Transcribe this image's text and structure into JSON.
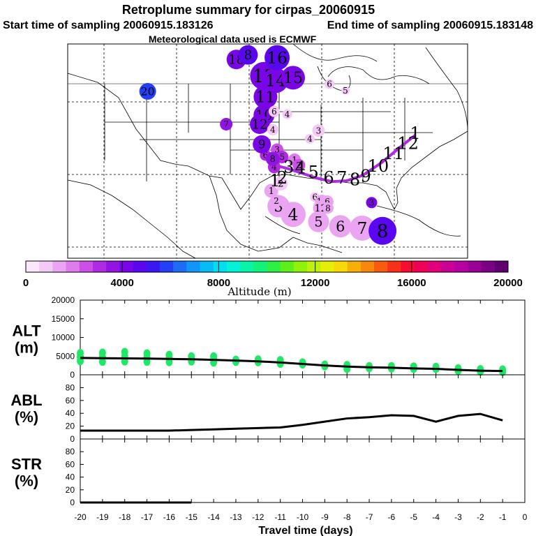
{
  "header": {
    "title": "Retroplume summary for cirpas_20060915",
    "subtitle_start": "Start time of sampling 20060915.183126",
    "subtitle_end": "End time of sampling 20060915.183148",
    "met_line": "Meteorological data used is ECMWF"
  },
  "colorbar": {
    "label": "Altitude (m)",
    "tick_labels": [
      "0",
      "4000",
      "8000",
      "12000",
      "16000",
      "20000"
    ],
    "colors": [
      "#fbe6fb",
      "#f4c9f6",
      "#eba4f1",
      "#dd7cec",
      "#cc4fe8",
      "#b02ae4",
      "#9214e4",
      "#7a06e8",
      "#5a06f0",
      "#3a18f4",
      "#2440f6",
      "#1c6cf8",
      "#1096f8",
      "#06bcf6",
      "#04dcf0",
      "#04f2d8",
      "#08f4a8",
      "#10f27a",
      "#2cf044",
      "#5cf018",
      "#90f20a",
      "#c0f208",
      "#e6ee06",
      "#f8d806",
      "#f8b008",
      "#f8880c",
      "#f85a10",
      "#f83018",
      "#f80c30",
      "#f00058",
      "#e0007c",
      "#cc0096",
      "#b600a0",
      "#9a0096",
      "#7c0084",
      "#600070"
    ]
  },
  "map": {
    "markers": [
      {
        "label": "1",
        "lon": -97.0,
        "lat": 28.9,
        "alt": 1200,
        "r": 10
      },
      {
        "label": "2",
        "lon": -95.7,
        "lat": 29.7,
        "alt": 1000,
        "r": 10
      },
      {
        "label": "3",
        "lon": -96.0,
        "lat": 27.2,
        "alt": 1400,
        "r": 16
      },
      {
        "label": "4",
        "lon": -94.0,
        "lat": 26.3,
        "alt": 1300,
        "r": 18
      },
      {
        "label": "5",
        "lon": -90.5,
        "lat": 25.5,
        "alt": 1500,
        "r": 15
      },
      {
        "label": "6",
        "lon": -87.5,
        "lat": 25.0,
        "alt": 1500,
        "r": 16
      },
      {
        "label": "7",
        "lon": -84.5,
        "lat": 24.8,
        "alt": 1400,
        "r": 18
      },
      {
        "label": "8",
        "lon": -81.7,
        "lat": 24.5,
        "alt": 4700,
        "r": 20
      },
      {
        "label": "1",
        "lon": -93.8,
        "lat": 32.3,
        "alt": 2000,
        "r": 9
      },
      {
        "label": "2",
        "lon": -93.2,
        "lat": 31.7,
        "alt": 2400,
        "r": 9
      },
      {
        "label": "3",
        "lon": -96.2,
        "lat": 33.4,
        "alt": 2700,
        "r": 9
      },
      {
        "label": "4",
        "lon": -96.6,
        "lat": 31.5,
        "alt": 2800,
        "r": 9
      },
      {
        "label": "5",
        "lon": -95.5,
        "lat": 32.6,
        "alt": 3100,
        "r": 9
      },
      {
        "label": "6",
        "lon": -97.8,
        "lat": 32.8,
        "alt": 3300,
        "r": 8
      },
      {
        "label": "7",
        "lon": -103.2,
        "lat": 36.2,
        "alt": 3400,
        "r": 9
      },
      {
        "label": "8",
        "lon": -96.8,
        "lat": 32.4,
        "alt": 3600,
        "r": 10
      },
      {
        "label": "9",
        "lon": -98.3,
        "lat": 34.0,
        "alt": 3900,
        "r": 13
      },
      {
        "label": "10",
        "lon": -98.0,
        "lat": 37.2,
        "alt": 3900,
        "r": 15
      },
      {
        "label": "11",
        "lon": -97.8,
        "lat": 39.2,
        "alt": 4100,
        "r": 17
      },
      {
        "label": "12",
        "lon": -98.6,
        "lat": 36.2,
        "alt": 4000,
        "r": 14
      },
      {
        "label": "13",
        "lon": -98.0,
        "lat": 41.5,
        "alt": 4200,
        "r": 20
      },
      {
        "label": "14",
        "lon": -96.4,
        "lat": 41.0,
        "alt": 4300,
        "r": 18
      },
      {
        "label": "15",
        "lon": -94.0,
        "lat": 41.3,
        "alt": 4400,
        "r": 17
      },
      {
        "label": "16",
        "lon": -96.2,
        "lat": 43.5,
        "alt": 4600,
        "r": 18
      },
      {
        "label": "18",
        "lon": -101.8,
        "lat": 43.3,
        "alt": 4400,
        "r": 14
      },
      {
        "label": "8",
        "lon": -100.2,
        "lat": 43.8,
        "alt": 4500,
        "r": 14
      },
      {
        "label": "20",
        "lon": -114.0,
        "lat": 39.8,
        "alt": 5800,
        "r": 12
      },
      {
        "label": "3",
        "lon": -90.5,
        "lat": 35.5,
        "alt": 800,
        "r": 9
      },
      {
        "label": "4",
        "lon": -94.8,
        "lat": 37.3,
        "alt": 700,
        "r": 7
      },
      {
        "label": "4",
        "lon": -96.8,
        "lat": 35.6,
        "alt": 800,
        "r": 8
      },
      {
        "label": "5",
        "lon": -86.8,
        "lat": 39.9,
        "alt": 600,
        "r": 6
      },
      {
        "label": "6",
        "lon": -89.0,
        "lat": 40.6,
        "alt": 600,
        "r": 7
      },
      {
        "label": "6",
        "lon": -96.6,
        "lat": 37.6,
        "alt": 1000,
        "r": 8
      },
      {
        "label": "4",
        "lon": -91.7,
        "lat": 34.6,
        "alt": 700,
        "r": 7
      },
      {
        "label": "6",
        "lon": -91.0,
        "lat": 28.2,
        "alt": 1100,
        "r": 7
      },
      {
        "label": "10",
        "lon": -90.0,
        "lat": 27.7,
        "alt": 1200,
        "r": 10
      },
      {
        "label": "6",
        "lon": -89.3,
        "lat": 27.7,
        "alt": 1300,
        "r": 9
      },
      {
        "label": "12",
        "lon": -90.2,
        "lat": 27.0,
        "alt": 1300,
        "r": 11
      },
      {
        "label": "8",
        "lon": -89.2,
        "lat": 27.0,
        "alt": 1300,
        "r": 8
      },
      {
        "label": "2",
        "lon": -96.3,
        "lat": 27.8,
        "alt": 1600,
        "r": 9
      },
      {
        "label": "3",
        "lon": -83.2,
        "lat": 27.6,
        "alt": 4200,
        "r": 8
      }
    ],
    "track": {
      "points": [
        [
          -77.2,
          35.0
        ],
        [
          -79.4,
          33.6
        ],
        [
          -81.8,
          32.0
        ],
        [
          -84.4,
          30.6
        ],
        [
          -86.6,
          30.0
        ],
        [
          -88.6,
          29.9
        ],
        [
          -90.8,
          30.3
        ],
        [
          -92.7,
          30.8
        ],
        [
          -94.6,
          31.3
        ],
        [
          -96.0,
          31.6
        ]
      ],
      "labels": [
        {
          "label": "1",
          "lon": -77.2,
          "lat": 35.2
        },
        {
          "label": "12",
          "lon": -78.2,
          "lat": 34.1
        },
        {
          "label": "11",
          "lon": -80.2,
          "lat": 33.0
        },
        {
          "label": "10",
          "lon": -82.3,
          "lat": 31.6
        },
        {
          "label": "9",
          "lon": -84.0,
          "lat": 30.5
        },
        {
          "label": "8",
          "lon": -85.5,
          "lat": 30.1
        },
        {
          "label": "7",
          "lon": -87.3,
          "lat": 30.3
        },
        {
          "label": "6",
          "lon": -89.1,
          "lat": 30.3
        },
        {
          "label": "5",
          "lon": -91.2,
          "lat": 30.9
        },
        {
          "label": "4",
          "lon": -93.0,
          "lat": 31.4
        },
        {
          "label": "3",
          "lon": -94.6,
          "lat": 31.5
        },
        {
          "label": "2",
          "lon": -95.5,
          "lat": 30.3
        },
        {
          "label": "1",
          "lon": -96.5,
          "lat": 30.0
        }
      ]
    }
  },
  "chart_data": [
    {
      "type": "scatter",
      "title": "ALT (m)",
      "label_line1": "ALT",
      "label_line2": "(m)",
      "xlabel": "Travel time (days)",
      "xlim": [
        -20,
        0
      ],
      "ylim": [
        0,
        20000
      ],
      "yticks": [
        "0",
        "5000",
        "10000",
        "15000",
        "20000"
      ],
      "xticks": [
        "-20",
        "-19",
        "-18",
        "-17",
        "-16",
        "-15",
        "-14",
        "-13",
        "-12",
        "-11",
        "-10",
        "-9",
        "-8",
        "-7",
        "-6",
        "-5",
        "-4",
        "-3",
        "-2",
        "-1",
        "0"
      ],
      "median_line": {
        "x": [
          -20,
          -19,
          -18,
          -17,
          -16,
          -15,
          -14,
          -13,
          -12,
          -11,
          -10,
          -9,
          -8,
          -7,
          -6,
          -5,
          -4,
          -3,
          -2,
          -1
        ],
        "y": [
          4500,
          4450,
          4400,
          4350,
          4250,
          4150,
          4000,
          3800,
          3600,
          3300,
          2900,
          2500,
          2200,
          2000,
          1900,
          1700,
          1600,
          1300,
          1100,
          1000
        ]
      },
      "scatter_color": "#1fe864",
      "scatter_x": [
        -20,
        -20,
        -20,
        -19,
        -19,
        -19,
        -18,
        -18,
        -18,
        -17,
        -17,
        -17,
        -16,
        -16,
        -16,
        -15,
        -15,
        -14,
        -14,
        -14,
        -13,
        -13,
        -12,
        -12,
        -11,
        -11,
        -10,
        -10,
        -9,
        -9,
        -8,
        -8,
        -7,
        -7,
        -6,
        -6,
        -5,
        -5,
        -4,
        -4,
        -3,
        -3,
        -2,
        -2,
        -1,
        -1
      ],
      "scatter_y": [
        5800,
        4800,
        3700,
        5900,
        4700,
        3500,
        6100,
        4900,
        3600,
        5700,
        4600,
        3500,
        5300,
        4500,
        3400,
        4900,
        3600,
        4900,
        4100,
        3300,
        4000,
        3500,
        4100,
        3400,
        3900,
        3000,
        3300,
        2800,
        2700,
        2300,
        2600,
        1600,
        2300,
        1800,
        2300,
        1700,
        2200,
        1600,
        2100,
        1600,
        1700,
        1100,
        1500,
        900,
        1400,
        800
      ]
    },
    {
      "type": "line",
      "title": "ABL (%)",
      "label_line1": "ABL",
      "label_line2": "(%)",
      "xlim": [
        -20,
        0
      ],
      "ylim": [
        0,
        100
      ],
      "yticks": [
        "0",
        "20",
        "40",
        "60",
        "80"
      ],
      "x": [
        -20,
        -19,
        -18,
        -17,
        -16,
        -15,
        -14,
        -13,
        -12,
        -11,
        -10,
        -9,
        -8,
        -7,
        -6,
        -5,
        -4,
        -3,
        -2,
        -1
      ],
      "y": [
        13,
        13,
        13,
        13,
        13,
        14,
        15,
        16,
        17,
        18,
        22,
        27,
        32,
        34,
        37,
        36,
        27,
        36,
        39,
        29
      ]
    },
    {
      "type": "line",
      "title": "STR (%)",
      "label_line1": "STR",
      "label_line2": "(%)",
      "xlim": [
        -20,
        0
      ],
      "ylim": [
        0,
        100
      ],
      "yticks": [
        "0",
        "20",
        "40",
        "60",
        "80"
      ],
      "x": [
        -20,
        -19,
        -18,
        -17,
        -16,
        -15
      ],
      "y": [
        0,
        0,
        0,
        0,
        0,
        0
      ]
    }
  ]
}
